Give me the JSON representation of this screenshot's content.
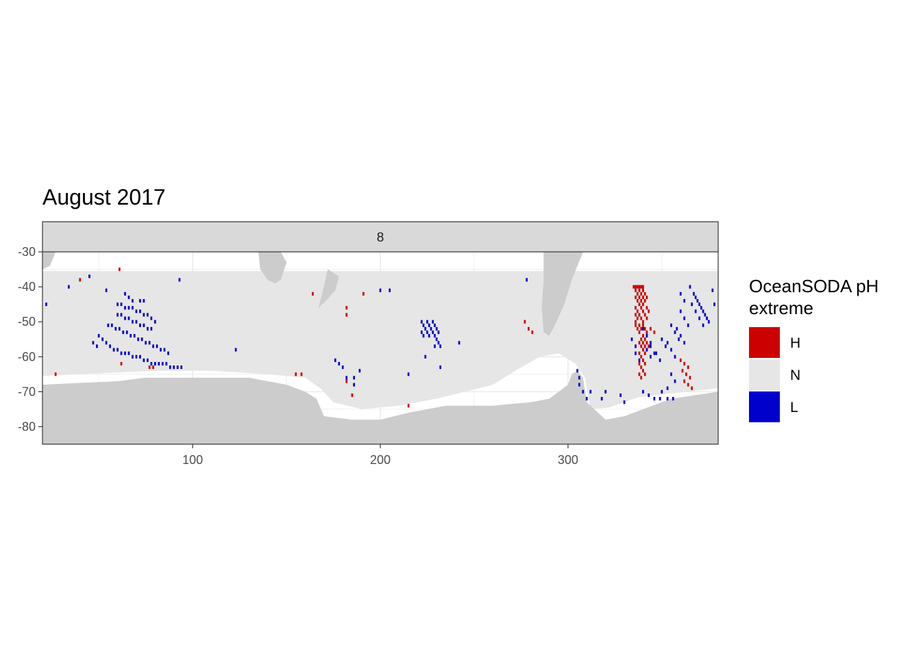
{
  "chart_data": {
    "type": "heatmap",
    "title": "August 2017",
    "facet_label": "8",
    "xlim": [
      20,
      380
    ],
    "ylim": [
      -85,
      -30
    ],
    "x_ticks": [
      100,
      200,
      300
    ],
    "y_ticks": [
      -30,
      -40,
      -50,
      -60,
      -70,
      -80
    ],
    "x_tick_labels": [
      "100",
      "200",
      "300"
    ],
    "y_tick_labels": [
      "-30",
      "-40",
      "-50",
      "-60",
      "-70",
      "-80"
    ],
    "grid": true,
    "legend": {
      "title_line1": "OceanSODA pH",
      "title_line2": "extreme",
      "position": "right",
      "entries": [
        {
          "label": "H",
          "color": "#cc0000"
        },
        {
          "label": "N",
          "color": "#e6e6e6"
        },
        {
          "label": "L",
          "color": "#0000cc"
        }
      ]
    },
    "colors": {
      "land": "#cccccc",
      "ocean_normal": "#e6e6e6",
      "no_data": "#ffffff",
      "high": "#cc0000",
      "low": "#0000cc",
      "strip": "#d9d9d9"
    },
    "land_regions": [
      {
        "name": "Antarctica",
        "points": [
          [
            20,
            -68
          ],
          [
            60,
            -67
          ],
          [
            75,
            -66
          ],
          [
            90,
            -66
          ],
          [
            110,
            -66
          ],
          [
            130,
            -66
          ],
          [
            150,
            -68
          ],
          [
            160,
            -70
          ],
          [
            166,
            -72
          ],
          [
            170,
            -77
          ],
          [
            185,
            -78
          ],
          [
            200,
            -78
          ],
          [
            215,
            -76
          ],
          [
            235,
            -74
          ],
          [
            260,
            -74
          ],
          [
            280,
            -73
          ],
          [
            290,
            -72
          ],
          [
            295,
            -70
          ],
          [
            300,
            -68
          ],
          [
            302,
            -65
          ],
          [
            305,
            -64
          ],
          [
            308,
            -66
          ],
          [
            310,
            -73
          ],
          [
            320,
            -78
          ],
          [
            330,
            -77
          ],
          [
            340,
            -75
          ],
          [
            355,
            -72
          ],
          [
            380,
            -70
          ],
          [
            380,
            -85
          ],
          [
            20,
            -85
          ]
        ]
      },
      {
        "name": "Australia-Tasmania",
        "points": [
          [
            135,
            -30
          ],
          [
            147,
            -30
          ],
          [
            150,
            -33
          ],
          [
            147,
            -38
          ],
          [
            144,
            -39
          ],
          [
            140,
            -38
          ],
          [
            136,
            -35
          ]
        ]
      },
      {
        "name": "Africa-tip",
        "points": [
          [
            20,
            -30
          ],
          [
            27,
            -30
          ],
          [
            24,
            -34
          ],
          [
            20,
            -35
          ]
        ]
      },
      {
        "name": "South-America",
        "points": [
          [
            287,
            -30
          ],
          [
            308,
            -30
          ],
          [
            302,
            -38
          ],
          [
            298,
            -45
          ],
          [
            293,
            -51
          ],
          [
            290,
            -54
          ],
          [
            287,
            -53
          ],
          [
            286,
            -46
          ],
          [
            287,
            -38
          ]
        ]
      },
      {
        "name": "New-Zealand",
        "points": [
          [
            172,
            -35
          ],
          [
            178,
            -37
          ],
          [
            176,
            -41
          ],
          [
            171,
            -44
          ],
          [
            167,
            -46
          ],
          [
            169,
            -42
          ]
        ]
      }
    ],
    "high_cells": [
      [
        335,
        -40
      ],
      [
        336,
        -40
      ],
      [
        337,
        -40
      ],
      [
        338,
        -40
      ],
      [
        339,
        -40
      ],
      [
        340,
        -40
      ],
      [
        336,
        -41
      ],
      [
        338,
        -41
      ],
      [
        340,
        -41
      ],
      [
        337,
        -42
      ],
      [
        339,
        -42
      ],
      [
        341,
        -42
      ],
      [
        336,
        -43
      ],
      [
        338,
        -43
      ],
      [
        340,
        -43
      ],
      [
        342,
        -43
      ],
      [
        337,
        -44
      ],
      [
        339,
        -44
      ],
      [
        341,
        -44
      ],
      [
        338,
        -45
      ],
      [
        340,
        -45
      ],
      [
        336,
        -46
      ],
      [
        339,
        -46
      ],
      [
        342,
        -46
      ],
      [
        337,
        -47
      ],
      [
        340,
        -47
      ],
      [
        343,
        -47
      ],
      [
        336,
        -48
      ],
      [
        338,
        -48
      ],
      [
        341,
        -48
      ],
      [
        337,
        -49
      ],
      [
        339,
        -49
      ],
      [
        342,
        -49
      ],
      [
        336,
        -50
      ],
      [
        340,
        -50
      ],
      [
        336,
        -51
      ],
      [
        338,
        -51
      ],
      [
        340,
        -51
      ],
      [
        337,
        -52
      ],
      [
        339,
        -52
      ],
      [
        341,
        -52
      ],
      [
        344,
        -52
      ],
      [
        338,
        -53
      ],
      [
        342,
        -53
      ],
      [
        346,
        -53
      ],
      [
        340,
        -54
      ],
      [
        339,
        -55
      ],
      [
        341,
        -55
      ],
      [
        338,
        -56
      ],
      [
        340,
        -56
      ],
      [
        342,
        -56
      ],
      [
        339,
        -57
      ],
      [
        341,
        -57
      ],
      [
        343,
        -57
      ],
      [
        340,
        -58
      ],
      [
        338,
        -59
      ],
      [
        341,
        -59
      ],
      [
        339,
        -60
      ],
      [
        340,
        -61
      ],
      [
        338,
        -62
      ],
      [
        341,
        -62
      ],
      [
        339,
        -63
      ],
      [
        340,
        -64
      ],
      [
        338,
        -65
      ],
      [
        341,
        -65
      ],
      [
        339,
        -66
      ],
      [
        360,
        -61
      ],
      [
        362,
        -62
      ],
      [
        364,
        -63
      ],
      [
        361,
        -64
      ],
      [
        363,
        -65
      ],
      [
        365,
        -66
      ],
      [
        362,
        -67
      ],
      [
        364,
        -68
      ],
      [
        366,
        -69
      ],
      [
        61,
        -35
      ],
      [
        40,
        -38
      ],
      [
        164,
        -42
      ],
      [
        191,
        -42
      ],
      [
        182,
        -46
      ],
      [
        182,
        -48
      ],
      [
        182,
        -67
      ],
      [
        185,
        -71
      ],
      [
        155,
        -65
      ],
      [
        158,
        -65
      ],
      [
        215,
        -74
      ],
      [
        77,
        -63
      ],
      [
        79,
        -63
      ],
      [
        277,
        -50
      ],
      [
        279,
        -52
      ],
      [
        281,
        -53
      ],
      [
        62,
        -62
      ],
      [
        27,
        -65
      ]
    ],
    "low_cells": [
      [
        45,
        -37
      ],
      [
        34,
        -40
      ],
      [
        54,
        -41
      ],
      [
        93,
        -38
      ],
      [
        200,
        -41
      ],
      [
        205,
        -41
      ],
      [
        278,
        -38
      ],
      [
        365,
        -40
      ],
      [
        367,
        -42
      ],
      [
        369,
        -44
      ],
      [
        371,
        -46
      ],
      [
        373,
        -48
      ],
      [
        375,
        -50
      ],
      [
        368,
        -43
      ],
      [
        370,
        -45
      ],
      [
        372,
        -47
      ],
      [
        374,
        -49
      ],
      [
        366,
        -45
      ],
      [
        368,
        -47
      ],
      [
        370,
        -49
      ],
      [
        372,
        -51
      ],
      [
        360,
        -47
      ],
      [
        362,
        -49
      ],
      [
        364,
        -51
      ],
      [
        358,
        -52
      ],
      [
        360,
        -54
      ],
      [
        362,
        -56
      ],
      [
        355,
        -51
      ],
      [
        357,
        -53
      ],
      [
        359,
        -55
      ],
      [
        353,
        -56
      ],
      [
        355,
        -58
      ],
      [
        357,
        -60
      ],
      [
        350,
        -55
      ],
      [
        352,
        -57
      ],
      [
        347,
        -59
      ],
      [
        349,
        -61
      ],
      [
        344,
        -57
      ],
      [
        346,
        -59
      ],
      [
        377,
        -41
      ],
      [
        378,
        -45
      ],
      [
        340,
        -52
      ],
      [
        342,
        -54
      ],
      [
        344,
        -56
      ],
      [
        342,
        -58
      ],
      [
        344,
        -60
      ],
      [
        334,
        -55
      ],
      [
        336,
        -57
      ],
      [
        336,
        -59
      ],
      [
        338,
        -61
      ],
      [
        355,
        -65
      ],
      [
        357,
        -67
      ],
      [
        340,
        -70
      ],
      [
        343,
        -71
      ],
      [
        346,
        -72
      ],
      [
        349,
        -72
      ],
      [
        353,
        -72
      ],
      [
        356,
        -72
      ],
      [
        350,
        -70
      ],
      [
        353,
        -69
      ],
      [
        222,
        -50
      ],
      [
        223,
        -51
      ],
      [
        224,
        -52
      ],
      [
        225,
        -50
      ],
      [
        226,
        -51
      ],
      [
        227,
        -52
      ],
      [
        228,
        -50
      ],
      [
        229,
        -51
      ],
      [
        230,
        -52
      ],
      [
        222,
        -53
      ],
      [
        225,
        -53
      ],
      [
        228,
        -53
      ],
      [
        231,
        -53
      ],
      [
        223,
        -54
      ],
      [
        226,
        -54
      ],
      [
        229,
        -54
      ],
      [
        230,
        -55
      ],
      [
        231,
        -56
      ],
      [
        232,
        -57
      ],
      [
        229,
        -57
      ],
      [
        60,
        -45
      ],
      [
        62,
        -45
      ],
      [
        64,
        -46
      ],
      [
        66,
        -46
      ],
      [
        68,
        -46
      ],
      [
        70,
        -47
      ],
      [
        72,
        -47
      ],
      [
        74,
        -48
      ],
      [
        76,
        -48
      ],
      [
        78,
        -49
      ],
      [
        80,
        -50
      ],
      [
        60,
        -48
      ],
      [
        62,
        -48
      ],
      [
        64,
        -49
      ],
      [
        66,
        -49
      ],
      [
        68,
        -50
      ],
      [
        70,
        -50
      ],
      [
        72,
        -51
      ],
      [
        74,
        -51
      ],
      [
        76,
        -52
      ],
      [
        78,
        -52
      ],
      [
        55,
        -51
      ],
      [
        57,
        -51
      ],
      [
        59,
        -52
      ],
      [
        61,
        -52
      ],
      [
        63,
        -53
      ],
      [
        65,
        -53
      ],
      [
        67,
        -54
      ],
      [
        69,
        -54
      ],
      [
        71,
        -55
      ],
      [
        73,
        -55
      ],
      [
        75,
        -56
      ],
      [
        77,
        -56
      ],
      [
        79,
        -57
      ],
      [
        81,
        -57
      ],
      [
        83,
        -58
      ],
      [
        85,
        -58
      ],
      [
        87,
        -59
      ],
      [
        50,
        -54
      ],
      [
        52,
        -55
      ],
      [
        54,
        -56
      ],
      [
        56,
        -57
      ],
      [
        58,
        -58
      ],
      [
        60,
        -58
      ],
      [
        62,
        -59
      ],
      [
        64,
        -59
      ],
      [
        66,
        -59
      ],
      [
        68,
        -60
      ],
      [
        70,
        -60
      ],
      [
        72,
        -60
      ],
      [
        74,
        -61
      ],
      [
        76,
        -61
      ],
      [
        78,
        -62
      ],
      [
        80,
        -62
      ],
      [
        82,
        -62
      ],
      [
        84,
        -62
      ],
      [
        86,
        -62
      ],
      [
        88,
        -63
      ],
      [
        90,
        -63
      ],
      [
        92,
        -63
      ],
      [
        94,
        -63
      ],
      [
        64,
        -42
      ],
      [
        66,
        -43
      ],
      [
        68,
        -44
      ],
      [
        72,
        -44
      ],
      [
        74,
        -44
      ],
      [
        47,
        -56
      ],
      [
        49,
        -57
      ],
      [
        123,
        -58
      ],
      [
        176,
        -61
      ],
      [
        178,
        -62
      ],
      [
        180,
        -63
      ],
      [
        189,
        -64
      ],
      [
        182,
        -66
      ],
      [
        215,
        -65
      ],
      [
        224,
        -60
      ],
      [
        232,
        -63
      ],
      [
        242,
        -56
      ],
      [
        22,
        -45
      ],
      [
        186,
        -66
      ],
      [
        186,
        -68
      ],
      [
        305,
        -64
      ],
      [
        306,
        -66
      ],
      [
        306,
        -68
      ],
      [
        308,
        -70
      ],
      [
        310,
        -72
      ],
      [
        312,
        -70
      ],
      [
        318,
        -72
      ],
      [
        320,
        -70
      ],
      [
        328,
        -71
      ],
      [
        330,
        -73
      ],
      [
        360,
        -42
      ],
      [
        362,
        -44
      ]
    ]
  }
}
